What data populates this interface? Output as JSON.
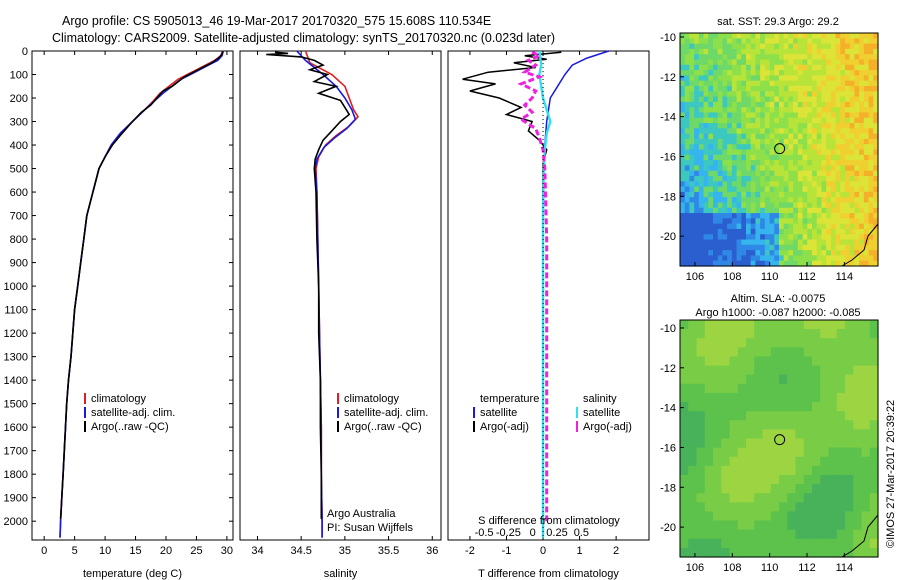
{
  "header": {
    "line1": "Argo profile: CS 5905013_46 19-Mar-2017 20170320_575 15.608S 110.534E",
    "line2": "Climatology: CARS2009. Satellite-adjusted climatology: synTS_20170320.nc (0.023d later)"
  },
  "footer_stamp": "©IMOS 27-Mar-2017 20:39:22",
  "colors": {
    "climatology": "#e02020",
    "satellite": "#1a1adc",
    "argo": "#000000",
    "sal_satellite": "#30e0f0",
    "sal_argo": "#f020e0"
  },
  "chart_data": [
    {
      "type": "line",
      "name": "temperature-profile",
      "xlabel": "temperature (deg C)",
      "xlim": [
        -2,
        31
      ],
      "ylim": [
        2080,
        0
      ],
      "xticks": [
        0,
        5,
        10,
        15,
        20,
        25,
        30
      ],
      "yticks": [
        0,
        100,
        200,
        300,
        400,
        500,
        600,
        700,
        800,
        900,
        1000,
        1100,
        1200,
        1300,
        1400,
        1500,
        1600,
        1700,
        1800,
        1900,
        2000
      ],
      "legend": [
        "climatology",
        "satellite-adj. clim.",
        "Argo(..raw -QC)"
      ],
      "series": [
        {
          "name": "climatology",
          "color": "#e02020",
          "points": [
            [
              29.3,
              0
            ],
            [
              29,
              20
            ],
            [
              28,
              40
            ],
            [
              26.5,
              60
            ],
            [
              25,
              80
            ],
            [
              23.5,
              100
            ],
            [
              22,
              120
            ],
            [
              20.5,
              150
            ],
            [
              19,
              180
            ],
            [
              18,
              210
            ],
            [
              16.5,
              250
            ],
            [
              14.5,
              300
            ],
            [
              12.5,
              350
            ],
            [
              11,
              400
            ],
            [
              10,
              450
            ],
            [
              9,
              500
            ],
            [
              8,
              600
            ],
            [
              7,
              700
            ],
            [
              6.5,
              800
            ],
            [
              6,
              900
            ],
            [
              5.5,
              1000
            ],
            [
              5,
              1100
            ],
            [
              4.7,
              1200
            ],
            [
              4.4,
              1300
            ],
            [
              4,
              1400
            ],
            [
              3.7,
              1500
            ],
            [
              3.5,
              1600
            ],
            [
              3.3,
              1700
            ],
            [
              3.1,
              1800
            ],
            [
              2.9,
              1900
            ],
            [
              2.7,
              2000
            ],
            [
              2.6,
              2070
            ]
          ]
        },
        {
          "name": "satellite-adj. clim.",
          "color": "#1a1adc",
          "points": [
            [
              29.4,
              0
            ],
            [
              29.2,
              20
            ],
            [
              28.5,
              40
            ],
            [
              27,
              60
            ],
            [
              25.5,
              80
            ],
            [
              24,
              100
            ],
            [
              22.5,
              120
            ],
            [
              21,
              150
            ],
            [
              19.5,
              180
            ],
            [
              18.2,
              210
            ],
            [
              16.5,
              250
            ],
            [
              14.5,
              300
            ],
            [
              12.5,
              350
            ],
            [
              11,
              400
            ],
            [
              10,
              450
            ],
            [
              9,
              500
            ],
            [
              8,
              600
            ],
            [
              7,
              700
            ],
            [
              6.5,
              800
            ],
            [
              6,
              900
            ],
            [
              5.5,
              1000
            ],
            [
              5,
              1100
            ],
            [
              4.7,
              1200
            ],
            [
              4.4,
              1300
            ],
            [
              4,
              1400
            ],
            [
              3.7,
              1500
            ],
            [
              3.5,
              1600
            ],
            [
              3.3,
              1700
            ],
            [
              3.1,
              1800
            ],
            [
              2.9,
              1900
            ],
            [
              2.7,
              2000
            ],
            [
              2.6,
              2070
            ]
          ]
        },
        {
          "name": "Argo(..raw -QC)",
          "color": "#000000",
          "points": [
            [
              29.3,
              2
            ],
            [
              29.2,
              15
            ],
            [
              28.6,
              30
            ],
            [
              27.5,
              50
            ],
            [
              26,
              70
            ],
            [
              24.5,
              90
            ],
            [
              23,
              110
            ],
            [
              22,
              130
            ],
            [
              21,
              150
            ],
            [
              19.5,
              170
            ],
            [
              18.5,
              200
            ],
            [
              17.5,
              230
            ],
            [
              16,
              260
            ],
            [
              14.5,
              300
            ],
            [
              12.8,
              350
            ],
            [
              11.2,
              400
            ],
            [
              10,
              450
            ],
            [
              9,
              500
            ],
            [
              8,
              600
            ],
            [
              7,
              700
            ],
            [
              6.5,
              800
            ],
            [
              6,
              900
            ],
            [
              5.5,
              1000
            ],
            [
              5,
              1100
            ],
            [
              4.7,
              1200
            ],
            [
              4.4,
              1300
            ],
            [
              4,
              1400
            ],
            [
              3.7,
              1500
            ],
            [
              3.5,
              1600
            ],
            [
              3.3,
              1700
            ],
            [
              3.1,
              1800
            ],
            [
              2.9,
              1900
            ],
            [
              2.7,
              1990
            ]
          ]
        }
      ]
    },
    {
      "type": "line",
      "name": "salinity-profile",
      "xlabel": "salinity",
      "xlim": [
        33.8,
        36.1
      ],
      "ylim": [
        2080,
        0
      ],
      "xticks": [
        34,
        34.5,
        35,
        35.5,
        36
      ],
      "legend": [
        "climatology",
        "satellite-adj. clim.",
        "Argo(..raw -QC)"
      ],
      "annotations": [
        "Argo Australia",
        "PI: Susan Wijffels"
      ],
      "series": [
        {
          "name": "climatology",
          "color": "#e02020",
          "points": [
            [
              34.55,
              0
            ],
            [
              34.6,
              50
            ],
            [
              34.85,
              100
            ],
            [
              35.0,
              150
            ],
            [
              35.05,
              200
            ],
            [
              35.1,
              250
            ],
            [
              35.15,
              280
            ],
            [
              35.05,
              320
            ],
            [
              34.9,
              360
            ],
            [
              34.78,
              400
            ],
            [
              34.7,
              450
            ],
            [
              34.67,
              500
            ],
            [
              34.68,
              600
            ],
            [
              34.69,
              800
            ],
            [
              34.7,
              1000
            ],
            [
              34.71,
              1200
            ],
            [
              34.72,
              1400
            ],
            [
              34.73,
              1600
            ],
            [
              34.73,
              1800
            ],
            [
              34.74,
              2000
            ],
            [
              34.74,
              2070
            ]
          ]
        },
        {
          "name": "satellite-adj. clim.",
          "color": "#1a1adc",
          "points": [
            [
              34.45,
              0
            ],
            [
              34.55,
              40
            ],
            [
              34.75,
              100
            ],
            [
              34.9,
              150
            ],
            [
              35.0,
              200
            ],
            [
              35.08,
              250
            ],
            [
              35.12,
              290
            ],
            [
              35.02,
              330
            ],
            [
              34.88,
              370
            ],
            [
              34.76,
              410
            ],
            [
              34.68,
              460
            ],
            [
              34.66,
              500
            ],
            [
              34.68,
              600
            ],
            [
              34.69,
              800
            ],
            [
              34.7,
              1000
            ],
            [
              34.71,
              1200
            ],
            [
              34.72,
              1400
            ],
            [
              34.73,
              1600
            ],
            [
              34.73,
              1800
            ],
            [
              34.74,
              2000
            ],
            [
              34.74,
              2070
            ]
          ]
        },
        {
          "name": "Argo(..raw -QC)",
          "color": "#000000",
          "points": [
            [
              34.2,
              5
            ],
            [
              34.35,
              10
            ],
            [
              34.1,
              15
            ],
            [
              34.5,
              25
            ],
            [
              34.65,
              40
            ],
            [
              34.75,
              60
            ],
            [
              34.6,
              80
            ],
            [
              34.8,
              100
            ],
            [
              34.65,
              130
            ],
            [
              34.9,
              150
            ],
            [
              34.7,
              180
            ],
            [
              34.95,
              210
            ],
            [
              35.0,
              240
            ],
            [
              35.05,
              270
            ],
            [
              34.95,
              300
            ],
            [
              34.85,
              340
            ],
            [
              34.75,
              380
            ],
            [
              34.7,
              420
            ],
            [
              34.66,
              460
            ],
            [
              34.65,
              500
            ],
            [
              34.67,
              600
            ],
            [
              34.68,
              800
            ],
            [
              34.7,
              1000
            ],
            [
              34.7,
              1200
            ],
            [
              34.72,
              1400
            ],
            [
              34.72,
              1600
            ],
            [
              34.73,
              1800
            ],
            [
              34.73,
              1990
            ]
          ]
        }
      ]
    },
    {
      "type": "line",
      "name": "difference-profile",
      "xlabel": "T difference from climatology",
      "xlabel2": "S difference from climatology",
      "xlim": [
        -2.6,
        2.9
      ],
      "ylim": [
        2080,
        0
      ],
      "xticks": [
        -2,
        -1,
        0,
        1,
        2
      ],
      "xticks2": [
        -0.5,
        -0.25,
        0,
        0.25,
        0.5
      ],
      "legend_headers": [
        "temperature",
        "salinity"
      ],
      "legend": [
        "satellite",
        "Argo(-adj)",
        "satellite",
        "Argo(-adj)"
      ],
      "series": [
        {
          "name": "temperature satellite",
          "color": "#1a1adc",
          "points": [
            [
              1.8,
              0
            ],
            [
              1.2,
              30
            ],
            [
              0.8,
              60
            ],
            [
              0.6,
              100
            ],
            [
              0.4,
              150
            ],
            [
              0.2,
              200
            ],
            [
              0.1,
              300
            ],
            [
              0.05,
              400
            ],
            [
              0.02,
              500
            ],
            [
              0,
              600
            ],
            [
              0,
              2070
            ]
          ]
        },
        {
          "name": "temperature Argo(-adj)",
          "color": "#000000",
          "points": [
            [
              0.5,
              5
            ],
            [
              -0.5,
              20
            ],
            [
              0.1,
              35
            ],
            [
              -0.8,
              50
            ],
            [
              -0.2,
              70
            ],
            [
              -1.5,
              90
            ],
            [
              -2.2,
              120
            ],
            [
              -1.3,
              140
            ],
            [
              -2.0,
              170
            ],
            [
              -1.2,
              200
            ],
            [
              -0.6,
              240
            ],
            [
              -1.0,
              270
            ],
            [
              -0.3,
              300
            ],
            [
              -0.4,
              340
            ],
            [
              -0.1,
              380
            ],
            [
              0.1,
              420
            ],
            [
              0,
              480
            ],
            [
              0,
              2000
            ]
          ]
        },
        {
          "name": "salinity satellite",
          "color": "#30e0f0",
          "points": [
            [
              -0.1,
              0
            ],
            [
              -0.05,
              60
            ],
            [
              -0.1,
              100
            ],
            [
              -0.05,
              150
            ],
            [
              0,
              200
            ],
            [
              0.1,
              250
            ],
            [
              0.2,
              300
            ],
            [
              0.1,
              350
            ],
            [
              0.05,
              420
            ],
            [
              0.02,
              500
            ],
            [
              0,
              700
            ],
            [
              0,
              2070
            ]
          ]
        },
        {
          "name": "salinity Argo(-adj)",
          "color": "#f020e0",
          "points": [
            [
              -0.3,
              5
            ],
            [
              -0.1,
              20
            ],
            [
              -0.4,
              40
            ],
            [
              -0.2,
              60
            ],
            [
              -0.5,
              90
            ],
            [
              -0.1,
              110
            ],
            [
              -0.6,
              140
            ],
            [
              -0.2,
              170
            ],
            [
              -0.3,
              200
            ],
            [
              -0.5,
              230
            ],
            [
              -0.3,
              260
            ],
            [
              -0.6,
              290
            ],
            [
              -0.2,
              330
            ],
            [
              -0.1,
              370
            ],
            [
              0,
              420
            ],
            [
              0.05,
              500
            ],
            [
              0.1,
              800
            ],
            [
              0.1,
              1200
            ],
            [
              0.1,
              1600
            ],
            [
              0.1,
              2000
            ]
          ]
        }
      ]
    },
    {
      "type": "heatmap",
      "name": "sst-map",
      "title": "sat. SST: 29.3 Argo: 29.2",
      "xlim": [
        105.2,
        115.8
      ],
      "ylim": [
        -21.5,
        -9.8
      ],
      "xticks": [
        106,
        108,
        110,
        112,
        114
      ],
      "yticks": [
        -10,
        -12,
        -14,
        -16,
        -18,
        -20
      ],
      "marker": [
        110.534,
        -15.608
      ]
    },
    {
      "type": "heatmap",
      "name": "sla-map",
      "title": "Altim. SLA: -0.0075",
      "subtitle": "Argo h1000: -0.087 h2000: -0.085",
      "xlim": [
        105.2,
        115.8
      ],
      "ylim": [
        -21.5,
        -9.6
      ],
      "xticks": [
        106,
        108,
        110,
        112,
        114
      ],
      "yticks": [
        -10,
        -12,
        -14,
        -16,
        -18,
        -20
      ],
      "marker": [
        110.534,
        -15.608
      ]
    }
  ]
}
